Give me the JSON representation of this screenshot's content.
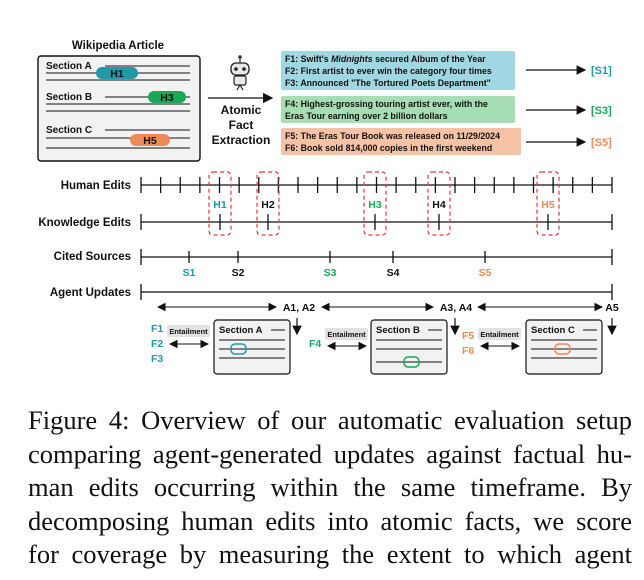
{
  "wiki": {
    "title": "Wikipedia Article",
    "sections": [
      "Section A",
      "Section B",
      "Section C"
    ],
    "highlights": [
      "H1",
      "H3",
      "H5"
    ]
  },
  "extraction": {
    "label_lines": [
      "Atomic",
      "Fact",
      "Extraction"
    ],
    "robot_icon": "robot-icon"
  },
  "facts": {
    "group1": {
      "lines": [
        {
          "pre": "F1: Swift's ",
          "em": "Midnights",
          "post": " secured Album of the Year"
        },
        {
          "pre": "F2: First artist to ever win the category four times",
          "em": "",
          "post": ""
        },
        {
          "pre": "F3: Announced \"The Tortured Poets Department\"",
          "em": "",
          "post": ""
        }
      ],
      "source": "[S1]"
    },
    "group2": {
      "lines": [
        {
          "pre": "F4: Highest-grossing touring artist ever, with the",
          "em": "",
          "post": ""
        },
        {
          "pre": "Eras Tour earning over 2 billion dollars",
          "em": "",
          "post": ""
        }
      ],
      "source": "[S3]"
    },
    "group3": {
      "lines": [
        {
          "pre": "F5: The Eras Tour Book was released on 11/29/2024",
          "em": "",
          "post": ""
        },
        {
          "pre": "F6: Book sold 814,000 copies in the first weekend",
          "em": "",
          "post": ""
        }
      ],
      "source": "[S5]"
    }
  },
  "timeline": {
    "rows": [
      "Human Edits",
      "Knowledge Edits",
      "Cited Sources",
      "Agent Updates"
    ],
    "knowledge_edits": [
      "H1",
      "H2",
      "H3",
      "H4",
      "H5"
    ],
    "cited_sources": [
      "S1",
      "S2",
      "S3",
      "S4",
      "S5"
    ],
    "agent_updates": [
      "A1, A2",
      "A3, A4",
      "A5"
    ]
  },
  "bottom": {
    "groups": [
      {
        "facts": [
          "F1",
          "F2",
          "F3"
        ],
        "relation": "Entailment",
        "section": "Section A"
      },
      {
        "facts": [
          "F4"
        ],
        "relation": "Entailment",
        "section": "Section B"
      },
      {
        "facts": [
          "F5",
          "F6"
        ],
        "relation": "Entailment",
        "section": "Section C"
      }
    ]
  },
  "colors": {
    "teal": "#1f9aa6",
    "green": "#18a957",
    "orange": "#ee8a55",
    "teal_bg": "#9fd7e2",
    "green_bg": "#a6ddb3",
    "orange_bg": "#f6c2a5",
    "red_dash": "#e33b3b"
  },
  "caption": {
    "lines": [
      "Figure 4: Overview of our automatic evaluation setup",
      "comparing agent-generated updates against factual hu-",
      "man edits occurring within the same timeframe. By",
      "decomposing human edits into atomic facts, we score",
      "for coverage by measuring the extent to which agent"
    ]
  }
}
